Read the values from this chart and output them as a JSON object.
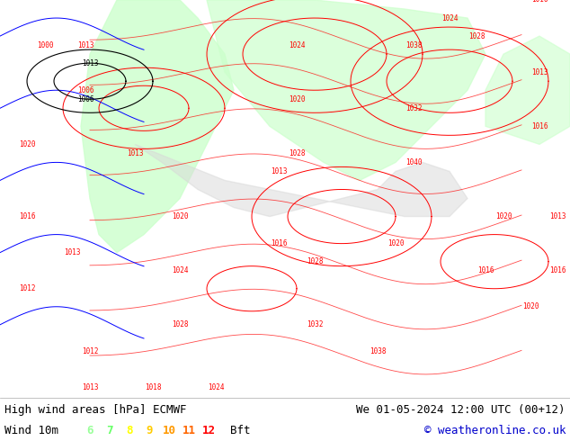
{
  "title_left": "High wind areas [hPa] ECMWF",
  "title_right": "We 01-05-2024 12:00 UTC (00+12)",
  "wind_label": "Wind 10m",
  "beaufort_numbers": [
    "6",
    "7",
    "8",
    "9",
    "10",
    "11",
    "12"
  ],
  "beaufort_colors": [
    "#99ff99",
    "#66ff66",
    "#ffff00",
    "#ffcc00",
    "#ff9900",
    "#ff6600",
    "#ff0000"
  ],
  "bft_label": "Bft",
  "copyright": "© weatheronline.co.uk",
  "bg_color": "#ffffff",
  "map_bg": "#e8f4e8",
  "legend_bg": "#ffffff",
  "fig_width": 6.34,
  "fig_height": 4.9,
  "dpi": 100,
  "title_fontsize": 9,
  "legend_fontsize": 9,
  "copyright_fontsize": 9,
  "map_border_color": "#cccccc",
  "bottom_bar_height": 0.1,
  "land_color": "#d3d3d3",
  "sea_color": "#ffffff",
  "high_wind_color": "#ccffcc",
  "contour_red": "#ff0000",
  "contour_blue": "#0000ff",
  "contour_black": "#000000"
}
